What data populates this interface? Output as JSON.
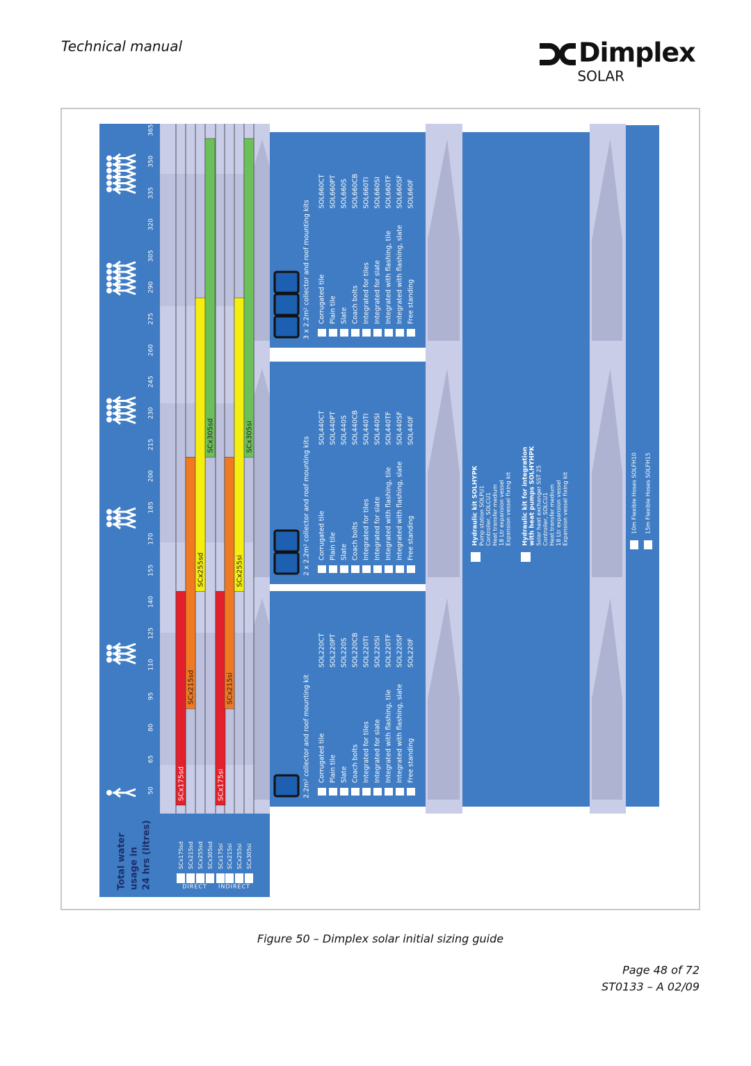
{
  "header": {
    "title": "Technical manual",
    "brand": "Dimplex",
    "product": "SOLAR"
  },
  "figure": {
    "usage_label": [
      "Total water",
      "usage in",
      "24 hrs (litres)"
    ],
    "scale": {
      "lim": [
        39,
        368
      ],
      "ticks": [
        50,
        65,
        80,
        95,
        110,
        125,
        140,
        155,
        170,
        185,
        200,
        215,
        230,
        245,
        260,
        275,
        290,
        305,
        320,
        335,
        350,
        365
      ]
    },
    "bars": [
      {
        "label": "SCx175sd",
        "color": "#e3202b",
        "from": 43,
        "to": 145
      },
      {
        "label": "SCx215sd",
        "color": "#f07a22",
        "from": 89,
        "to": 209
      },
      {
        "label": "SCx255sd",
        "color": "#f6ee10",
        "from": 145,
        "to": 285
      },
      {
        "label": "SCx305sd",
        "color": "#6cc05a",
        "from": 209,
        "to": 361
      },
      {
        "label": "SCx175si",
        "color": "#e3202b",
        "from": 43,
        "to": 145
      },
      {
        "label": "SCx215si",
        "color": "#f07a22",
        "from": 89,
        "to": 209
      },
      {
        "label": "SCx255si",
        "color": "#f6ee10",
        "from": 145,
        "to": 285
      },
      {
        "label": "SCx305si",
        "color": "#6cc05a",
        "from": 209,
        "to": 361
      }
    ],
    "groups": [
      "DIRECT",
      "INDIRECT"
    ],
    "kits": [
      {
        "title": "2.2m² collector and roof mounting kit",
        "items": [
          {
            "name": "Corrugated tile",
            "code": "SOL220CT"
          },
          {
            "name": "Plain tile",
            "code": "SOL220PT"
          },
          {
            "name": "Slate",
            "code": "SOL220S"
          },
          {
            "name": "Coach bolts",
            "code": "SOL220CB"
          },
          {
            "name": "Integrated for tiles",
            "code": "SOL220TI"
          },
          {
            "name": "Integrated for slate",
            "code": "SOL220SI"
          },
          {
            "name": "Integrated with flashing, tile",
            "code": "SOL220TF"
          },
          {
            "name": "Integrated with flashing, slate",
            "code": "SOL220SF"
          },
          {
            "name": "Free standing",
            "code": "SOL220F"
          }
        ]
      },
      {
        "title": "2 x 2.2m² collector and roof mounting kits",
        "items": [
          {
            "name": "Corrugated tile",
            "code": "SOL440CT"
          },
          {
            "name": "Plain tile",
            "code": "SOL440PT"
          },
          {
            "name": "Slate",
            "code": "SOL440S"
          },
          {
            "name": "Coach bolts",
            "code": "SOL440CB"
          },
          {
            "name": "Integrated for tiles",
            "code": "SOL440TI"
          },
          {
            "name": "Integrated for slate",
            "code": "SOL440SI"
          },
          {
            "name": "Integrated with flashing, tile",
            "code": "SOL440TF"
          },
          {
            "name": "Integrated with flashing, slate",
            "code": "SOL440SF"
          },
          {
            "name": "Free standing",
            "code": "SOL440F"
          }
        ]
      },
      {
        "title": "3 x 2.2m² collector and roof mounting kits",
        "items": [
          {
            "name": "Corrugated tile",
            "code": "SOL660CT"
          },
          {
            "name": "Plain tile",
            "code": "SOL660PT"
          },
          {
            "name": "Slate",
            "code": "SOL660S"
          },
          {
            "name": "Coach bolts",
            "code": "SOL660CB"
          },
          {
            "name": "Integrated for tiles",
            "code": "SOL660TI"
          },
          {
            "name": "Integrated for slate",
            "code": "SOL660SI"
          },
          {
            "name": "Integrated with flashing, tile",
            "code": "SOL660TF"
          },
          {
            "name": "Integrated with flashing, slate",
            "code": "SOL660SF"
          },
          {
            "name": "Free standing",
            "code": "SOL660F"
          }
        ]
      }
    ],
    "hydraulic": [
      {
        "title": [
          "Hydraulic kit SOLHYPK"
        ],
        "items": [
          "Pump station SOLPU1",
          "Controller, SOLCU1",
          "Heat transfer medium",
          "18 Ltr expansion vessel",
          "Expansion vessel fixing kit"
        ]
      },
      {
        "title": [
          "Hydraulic kit for integration",
          "with heat pumps SOLHYHPK"
        ],
        "items": [
          "Solar heat exchanger SST 25",
          "Controller, SOLCU1",
          "Heat transfer medium",
          "18 Ltr expansion vessel",
          "Expansion vessel fixing kit"
        ]
      }
    ],
    "hoses": [
      "10m Flexible Hoses SOLFH10",
      "15m Flexible Hoses SOLFH15"
    ]
  },
  "caption": "Figure 50 – Dimplex solar initial sizing guide",
  "footer": {
    "page": "Page 48 of 72",
    "doc": "ST0133 – A 02/09"
  }
}
